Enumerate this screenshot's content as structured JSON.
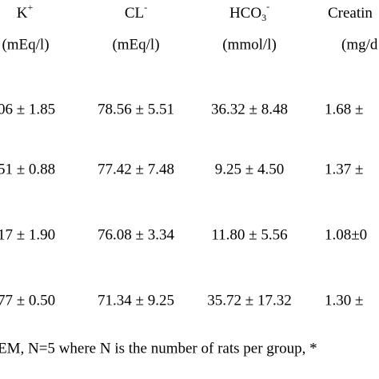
{
  "table": {
    "header": [
      {
        "text": "K",
        "sup": "+"
      },
      {
        "text": "CL",
        "sup": "-"
      },
      {
        "text": "HCO",
        "sub": "3",
        "sup": "-"
      },
      {
        "text": "Creatin"
      }
    ],
    "units": [
      "(mEq/l)",
      "(mEq/l)",
      "(mmol/l)",
      "(mg/d"
    ],
    "rows": [
      [
        "06 ± 1.85",
        "78.56 ± 5.51",
        "36.32 ± 8.48",
        "1.68 ±"
      ],
      [
        "51 ± 0.88",
        "77.42 ± 7.48",
        "9.25 ± 4.50",
        "1.37 ±"
      ],
      [
        "17 ± 1.90",
        "76.08 ± 3.34",
        "11.80 ± 5.56",
        "1.08±0"
      ],
      [
        "77 ± 0.50",
        "71.34 ± 9.25",
        "35.72 ± 17.32",
        "1.30 ±"
      ]
    ],
    "footnote": "EM, N=5 where N is the number of rats per group, *"
  }
}
